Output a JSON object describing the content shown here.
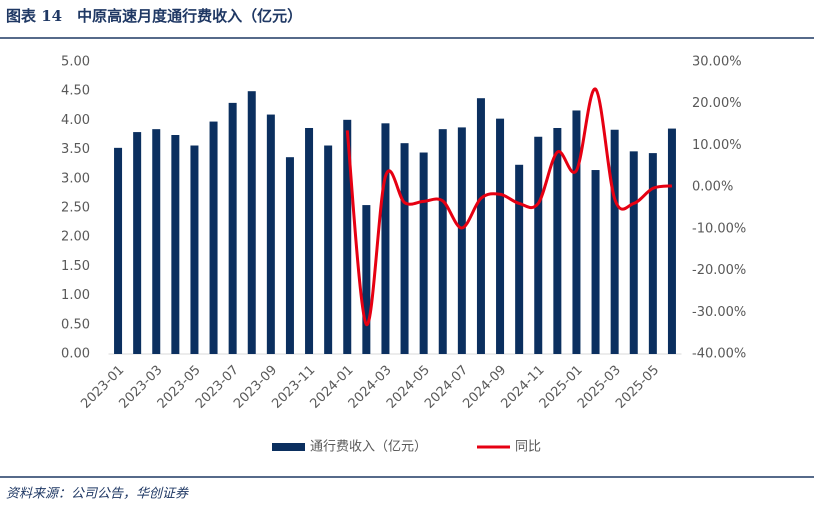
{
  "chart_data": {
    "type": "bar-line",
    "title": "图表 14　中原高速月度通行费收入（亿元）",
    "source": "资料来源：公司公告，华创证券",
    "categories": [
      "2023-01",
      null,
      "2023-03",
      null,
      "2023-05",
      null,
      "2023-07",
      null,
      "2023-09",
      null,
      "2023-11",
      null,
      "2024-01",
      null,
      "2024-03",
      null,
      "2024-05",
      null,
      "2024-07",
      null,
      "2024-09",
      null,
      "2024-11",
      null,
      "2025-01",
      null,
      "2025-03",
      null,
      "2025-05",
      null
    ],
    "series": [
      {
        "name": "通行费收入（亿元）",
        "type": "bar",
        "color": "#0b2f5f",
        "values": [
          3.53,
          3.8,
          3.85,
          3.75,
          3.57,
          3.98,
          4.3,
          4.5,
          4.1,
          3.37,
          3.87,
          3.57,
          4.01,
          2.55,
          3.95,
          3.61,
          3.45,
          3.85,
          3.88,
          4.38,
          4.03,
          3.24,
          3.72,
          3.87,
          4.17,
          3.15,
          3.84,
          3.47,
          3.44,
          3.86
        ]
      },
      {
        "name": "同比",
        "type": "line",
        "axis": "y2",
        "color": "#e60012",
        "values": [
          null,
          null,
          null,
          null,
          null,
          null,
          null,
          null,
          null,
          null,
          null,
          null,
          13.6,
          -32.9,
          2.6,
          -3.7,
          -3.4,
          -3.3,
          -9.8,
          -2.7,
          -1.7,
          -3.9,
          -3.9,
          8.4,
          4.0,
          23.5,
          -2.8,
          -3.9,
          -0.3,
          0.3
        ]
      }
    ],
    "ylim": [
      0,
      5
    ],
    "yticks": [
      {
        "value": 0,
        "label": "0.00"
      },
      {
        "value": 0.5,
        "label": "0.50"
      },
      {
        "value": 1,
        "label": "1.00"
      },
      {
        "value": 1.5,
        "label": "1.50"
      },
      {
        "value": 2,
        "label": "2.00"
      },
      {
        "value": 2.5,
        "label": "2.50"
      },
      {
        "value": 3,
        "label": "3.00"
      },
      {
        "value": 3.5,
        "label": "3.50"
      },
      {
        "value": 4,
        "label": "4.00"
      },
      {
        "value": 4.5,
        "label": "4.50"
      },
      {
        "value": 5,
        "label": "5.00"
      }
    ],
    "y2lim": [
      -40,
      30
    ],
    "y2ticks": [
      {
        "value": -40,
        "label": "-40.00%"
      },
      {
        "value": -30,
        "label": "-30.00%"
      },
      {
        "value": -20,
        "label": "-20.00%"
      },
      {
        "value": -10,
        "label": "-10.00%"
      },
      {
        "value": 0,
        "label": "0.00%"
      },
      {
        "value": 10,
        "label": "10.00%"
      },
      {
        "value": 20,
        "label": "20.00%"
      },
      {
        "value": 30,
        "label": "30.00%"
      }
    ],
    "legend": "bottom"
  }
}
